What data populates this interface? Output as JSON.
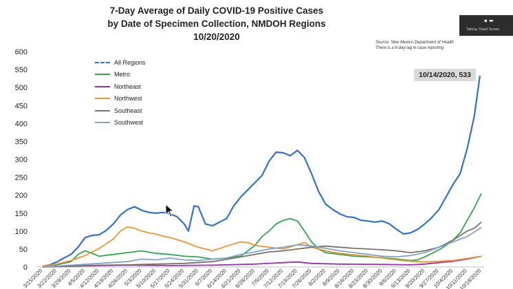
{
  "chart_data": {
    "type": "line",
    "title_lines": [
      "7-Day Average of Daily COVID-19 Positive Cases",
      "by Date of Specimen Collection, NMDOH Regions",
      "10/20/2020"
    ],
    "source_lines": [
      "Source: New Mexico Department of Health",
      "There is a 6-day lag in case reporting"
    ],
    "ylim": [
      0,
      600
    ],
    "yticks": [
      0,
      50,
      100,
      150,
      200,
      250,
      300,
      350,
      400,
      450,
      500,
      550,
      600
    ],
    "xticks": [
      "3/15/2020",
      "3/22/2020",
      "3/29/2020",
      "4/5/2020",
      "4/12/2020",
      "4/19/2020",
      "4/26/2020",
      "5/3/2020",
      "5/10/2020",
      "5/17/2020",
      "5/24/2020",
      "5/31/2020",
      "6/7/2020",
      "6/14/2020",
      "6/21/2020",
      "6/28/2020",
      "7/5/2020",
      "7/12/2020",
      "7/19/2020",
      "7/26/2020",
      "8/2/2020",
      "8/9/2020",
      "8/16/2020",
      "8/23/2020",
      "8/30/2020",
      "9/6/2020",
      "9/13/2020",
      "9/20/2020",
      "9/27/2020",
      "10/4/2020",
      "10/11/2020",
      "10/18/2020"
    ],
    "legend_position": "top-left",
    "annotation": "10/14/2020, 533",
    "series": [
      {
        "name": "All Regions",
        "color": "#2e6fd8",
        "dashed": true,
        "points": [
          [
            0,
            2
          ],
          [
            0.5,
            6
          ],
          [
            1,
            14
          ],
          [
            1.5,
            25
          ],
          [
            2,
            35
          ],
          [
            2.5,
            55
          ],
          [
            3,
            82
          ],
          [
            3.5,
            88
          ],
          [
            4,
            90
          ],
          [
            4.5,
            102
          ],
          [
            5,
            120
          ],
          [
            5.5,
            145
          ],
          [
            6,
            160
          ],
          [
            6.5,
            168
          ],
          [
            7,
            158
          ],
          [
            7.5,
            152
          ],
          [
            8,
            150
          ],
          [
            8.5,
            152
          ],
          [
            9,
            148
          ],
          [
            9.5,
            140
          ],
          [
            10,
            120
          ],
          [
            10.3,
            100
          ],
          [
            10.7,
            170
          ],
          [
            11,
            168
          ],
          [
            11.5,
            120
          ],
          [
            12,
            115
          ],
          [
            12.5,
            125
          ],
          [
            13,
            135
          ],
          [
            13.5,
            170
          ],
          [
            14,
            195
          ],
          [
            14.5,
            215
          ],
          [
            15,
            235
          ],
          [
            15.5,
            255
          ],
          [
            16,
            295
          ],
          [
            16.5,
            320
          ],
          [
            17,
            318
          ],
          [
            17.5,
            310
          ],
          [
            18,
            325
          ],
          [
            18.5,
            305
          ],
          [
            19,
            260
          ],
          [
            19.5,
            210
          ],
          [
            20,
            175
          ],
          [
            20.5,
            160
          ],
          [
            21,
            148
          ],
          [
            21.5,
            140
          ],
          [
            22,
            138
          ],
          [
            22.5,
            130
          ],
          [
            23,
            128
          ],
          [
            23.5,
            125
          ],
          [
            24,
            128
          ],
          [
            24.5,
            120
          ],
          [
            25,
            105
          ],
          [
            25.5,
            92
          ],
          [
            26,
            95
          ],
          [
            26.5,
            105
          ],
          [
            27,
            120
          ],
          [
            27.5,
            138
          ],
          [
            28,
            160
          ],
          [
            28.5,
            195
          ],
          [
            29,
            230
          ],
          [
            29.5,
            260
          ],
          [
            30,
            330
          ],
          [
            30.5,
            420
          ],
          [
            30.9,
            533
          ]
        ]
      },
      {
        "name": "Metro",
        "color": "#2ca94a",
        "dashed": false,
        "points": [
          [
            0,
            1
          ],
          [
            1,
            6
          ],
          [
            2,
            15
          ],
          [
            2.5,
            35
          ],
          [
            3,
            45
          ],
          [
            3.5,
            38
          ],
          [
            4,
            30
          ],
          [
            5,
            35
          ],
          [
            6,
            40
          ],
          [
            7,
            45
          ],
          [
            8,
            38
          ],
          [
            9,
            35
          ],
          [
            10,
            30
          ],
          [
            11,
            28
          ],
          [
            12,
            22
          ],
          [
            13,
            25
          ],
          [
            14,
            30
          ],
          [
            14.5,
            45
          ],
          [
            15,
            60
          ],
          [
            15.5,
            85
          ],
          [
            16,
            100
          ],
          [
            16.5,
            120
          ],
          [
            17,
            130
          ],
          [
            17.5,
            135
          ],
          [
            18,
            128
          ],
          [
            18.5,
            100
          ],
          [
            19,
            70
          ],
          [
            19.5,
            50
          ],
          [
            20,
            40
          ],
          [
            21,
            35
          ],
          [
            22,
            30
          ],
          [
            23,
            28
          ],
          [
            24,
            26
          ],
          [
            25,
            22
          ],
          [
            26,
            18
          ],
          [
            26.5,
            20
          ],
          [
            27,
            28
          ],
          [
            27.5,
            38
          ],
          [
            28,
            48
          ],
          [
            28.5,
            60
          ],
          [
            29,
            75
          ],
          [
            29.5,
            95
          ],
          [
            30,
            130
          ],
          [
            30.5,
            165
          ],
          [
            31,
            205
          ]
        ]
      },
      {
        "name": "Northeast",
        "color": "#9b2fb0",
        "dashed": false,
        "points": [
          [
            0,
            0
          ],
          [
            3,
            3
          ],
          [
            6,
            5
          ],
          [
            9,
            4
          ],
          [
            12,
            5
          ],
          [
            15,
            8
          ],
          [
            17,
            12
          ],
          [
            18,
            14
          ],
          [
            19,
            10
          ],
          [
            21,
            8
          ],
          [
            24,
            7
          ],
          [
            26,
            6
          ],
          [
            27,
            8
          ],
          [
            28,
            12
          ],
          [
            29,
            16
          ],
          [
            30,
            22
          ],
          [
            31,
            30
          ]
        ]
      },
      {
        "name": "Northwest",
        "color": "#f3932b",
        "dashed": false,
        "points": [
          [
            0,
            2
          ],
          [
            1,
            8
          ],
          [
            2,
            18
          ],
          [
            3,
            32
          ],
          [
            4,
            52
          ],
          [
            5,
            78
          ],
          [
            5.5,
            100
          ],
          [
            6,
            112
          ],
          [
            6.5,
            108
          ],
          [
            7,
            100
          ],
          [
            7.5,
            95
          ],
          [
            8,
            92
          ],
          [
            8.5,
            86
          ],
          [
            9,
            82
          ],
          [
            10,
            70
          ],
          [
            11,
            55
          ],
          [
            12,
            45
          ],
          [
            13,
            58
          ],
          [
            14,
            70
          ],
          [
            14.5,
            68
          ],
          [
            15,
            60
          ],
          [
            16,
            55
          ],
          [
            17,
            50
          ],
          [
            18,
            62
          ],
          [
            18.5,
            68
          ],
          [
            19,
            55
          ],
          [
            20,
            45
          ],
          [
            21,
            38
          ],
          [
            22,
            34
          ],
          [
            23,
            30
          ],
          [
            24,
            25
          ],
          [
            25,
            20
          ],
          [
            26,
            16
          ],
          [
            27,
            14
          ],
          [
            28,
            16
          ],
          [
            29,
            18
          ],
          [
            30,
            24
          ],
          [
            31,
            30
          ]
        ]
      },
      {
        "name": "Southeast",
        "color": "#7a7064",
        "dashed": false,
        "points": [
          [
            0,
            0
          ],
          [
            2,
            3
          ],
          [
            4,
            5
          ],
          [
            6,
            6
          ],
          [
            8,
            8
          ],
          [
            10,
            10
          ],
          [
            12,
            15
          ],
          [
            14,
            28
          ],
          [
            15,
            35
          ],
          [
            16,
            42
          ],
          [
            17,
            45
          ],
          [
            18,
            50
          ],
          [
            19,
            55
          ],
          [
            20,
            58
          ],
          [
            21,
            55
          ],
          [
            22,
            52
          ],
          [
            23,
            50
          ],
          [
            24,
            48
          ],
          [
            25,
            45
          ],
          [
            26,
            40
          ],
          [
            27,
            45
          ],
          [
            28,
            55
          ],
          [
            29,
            75
          ],
          [
            30,
            100
          ],
          [
            30.5,
            108
          ],
          [
            31,
            125
          ]
        ]
      },
      {
        "name": "Southwest",
        "color": "#7da2d6",
        "dashed": false,
        "points": [
          [
            0,
            0
          ],
          [
            2,
            5
          ],
          [
            4,
            10
          ],
          [
            6,
            15
          ],
          [
            7,
            22
          ],
          [
            8,
            20
          ],
          [
            9,
            25
          ],
          [
            10,
            20
          ],
          [
            11,
            18
          ],
          [
            12,
            22
          ],
          [
            13,
            25
          ],
          [
            14,
            35
          ],
          [
            15,
            42
          ],
          [
            16,
            50
          ],
          [
            17,
            55
          ],
          [
            18,
            62
          ],
          [
            19,
            58
          ],
          [
            20,
            52
          ],
          [
            21,
            45
          ],
          [
            22,
            40
          ],
          [
            23,
            35
          ],
          [
            24,
            30
          ],
          [
            25,
            28
          ],
          [
            26,
            32
          ],
          [
            27,
            40
          ],
          [
            28,
            55
          ],
          [
            29,
            70
          ],
          [
            30,
            85
          ],
          [
            31,
            110
          ]
        ]
      }
    ]
  },
  "overlay": {
    "label": "Talking: David Scrase",
    "dots": "▪ ▬"
  }
}
